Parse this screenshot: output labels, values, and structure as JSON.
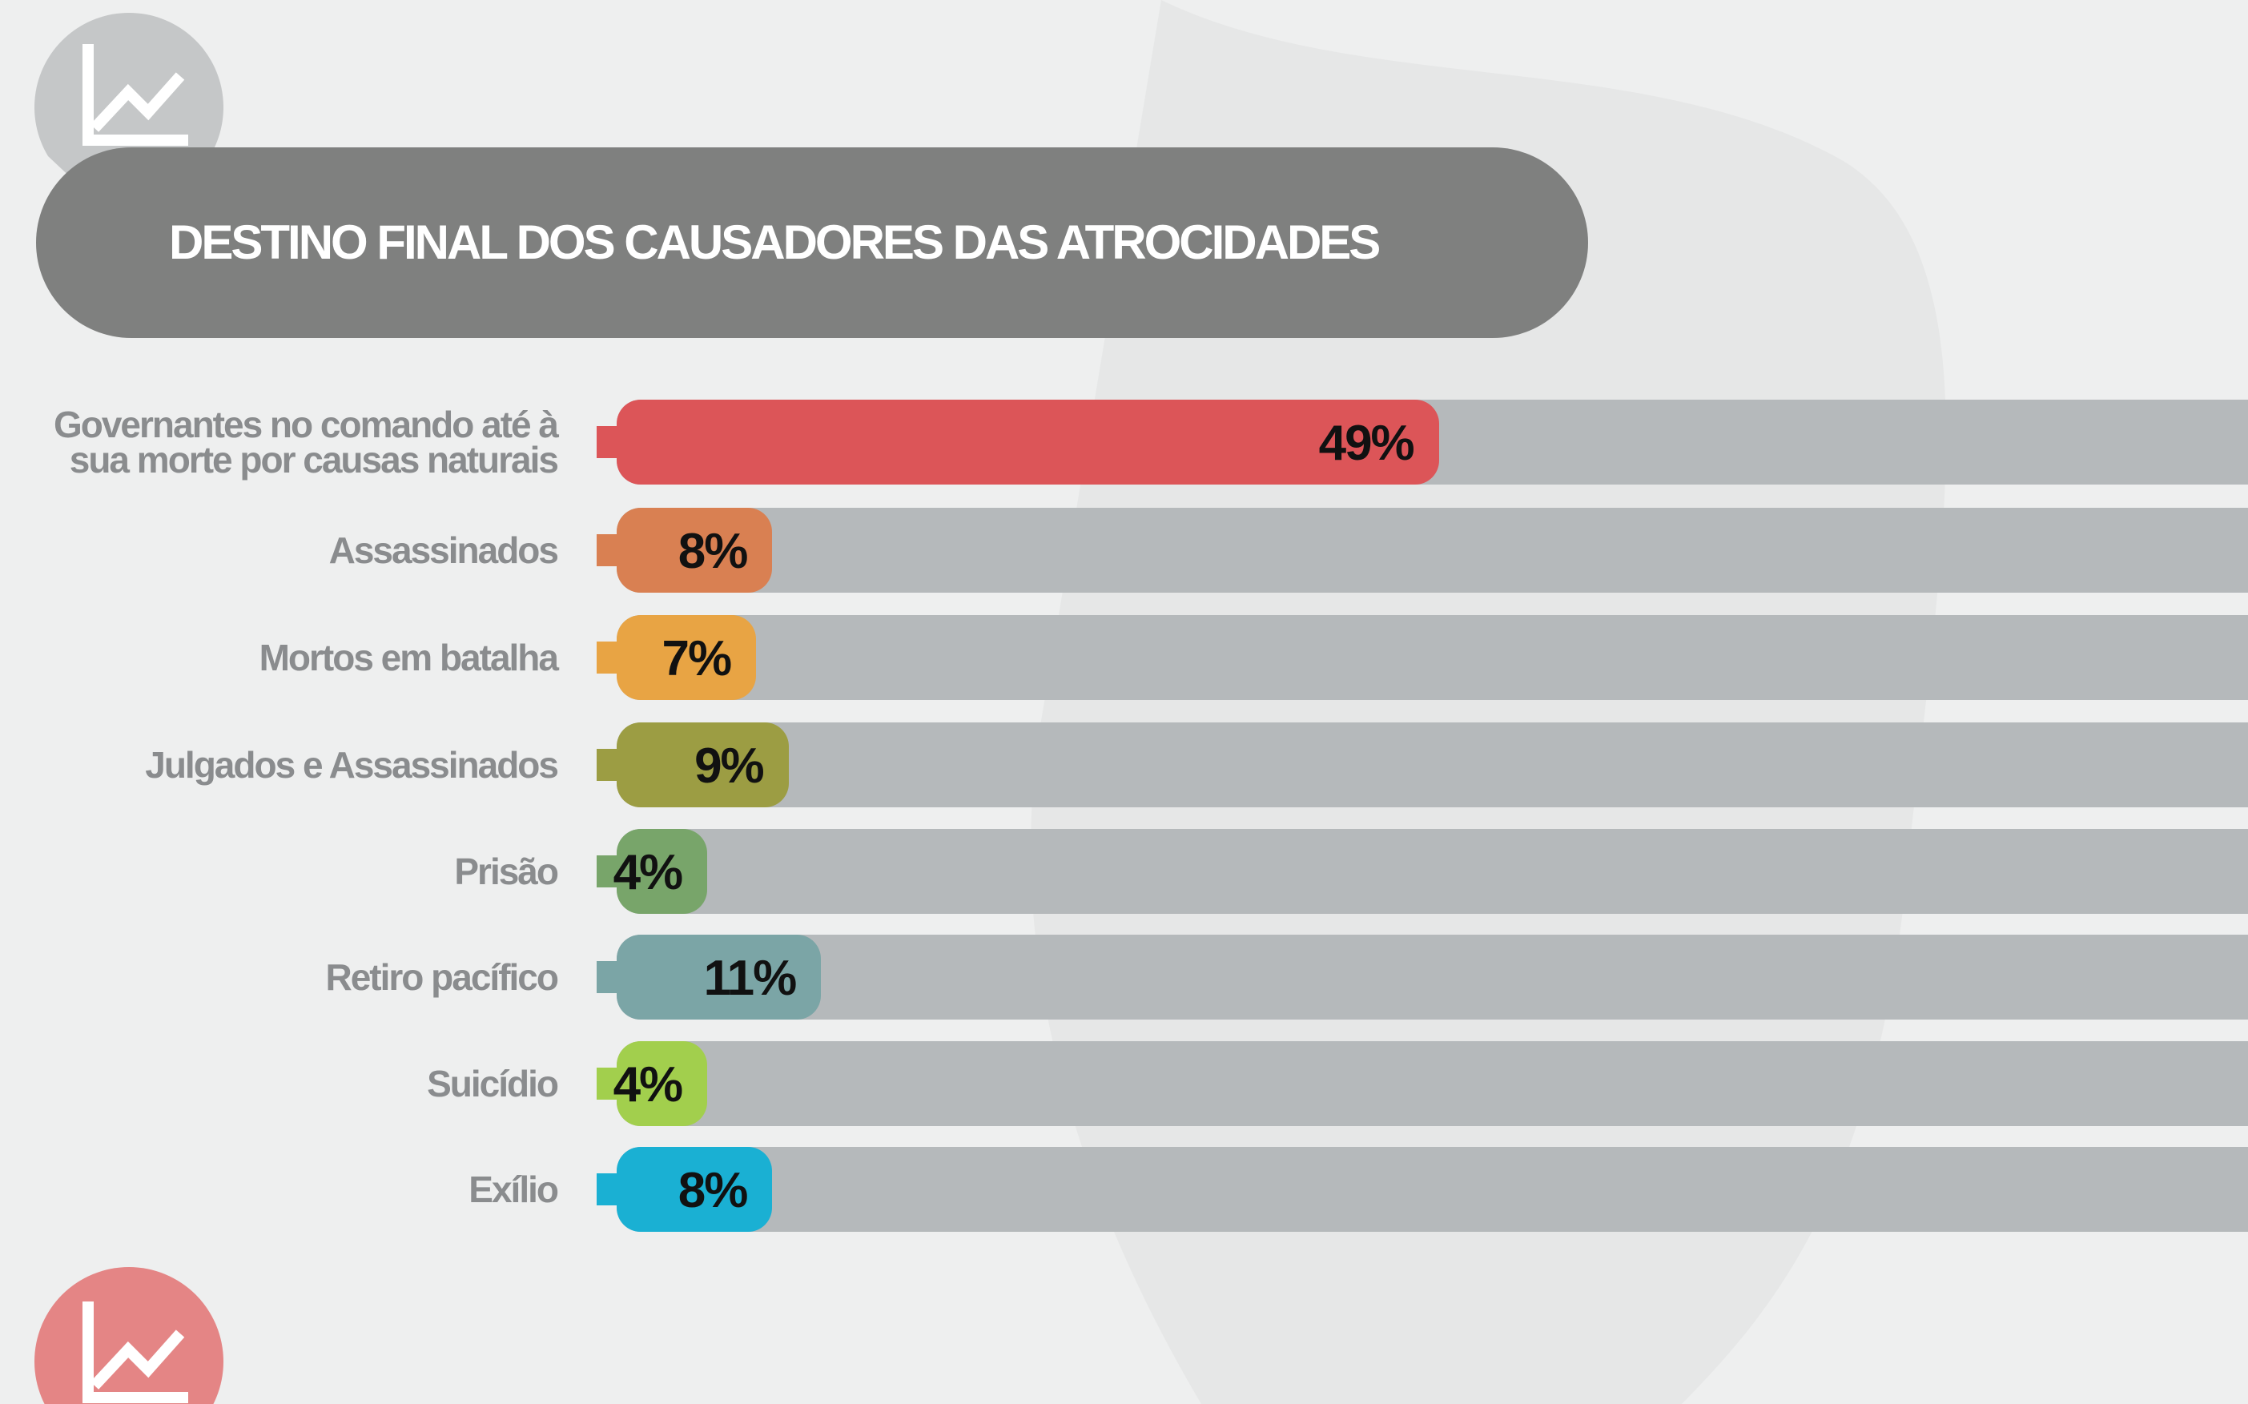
{
  "chart_data": {
    "type": "bar",
    "orientation": "horizontal",
    "title": "DESTINO FINAL DOS CAUSADORES DAS ATROCIDADES",
    "categories": [
      "Governantes no comando até à sua morte por causas naturais",
      "Assassinados",
      "Mortos em batalha",
      "Julgados e Assassinados",
      "Prisão",
      "Retiro pacífico",
      "Suicídio",
      "Exílio"
    ],
    "values": [
      49,
      8,
      7,
      9,
      4,
      11,
      4,
      8
    ],
    "value_labels": [
      "49%",
      "8%",
      "7%",
      "9%",
      "4%",
      "11%",
      "4%",
      "8%"
    ],
    "colors": [
      "#dc5558",
      "#d98052",
      "#e8a444",
      "#9c9d43",
      "#78a56a",
      "#7ba5a6",
      "#a2cf4d",
      "#1ab0d3"
    ]
  }
}
